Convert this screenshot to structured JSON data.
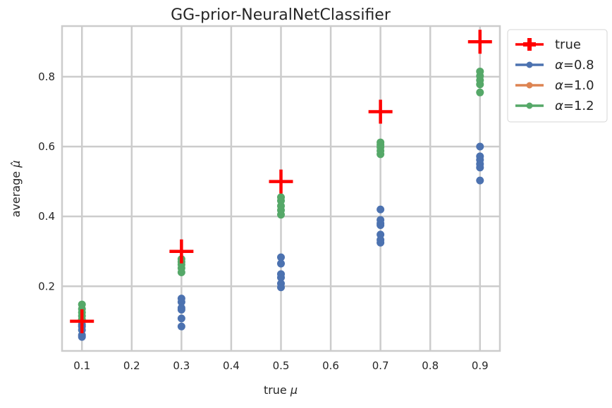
{
  "chart_data": {
    "type": "scatter",
    "title": "GG-prior-NeuralNetClassifier",
    "xlabel": "true",
    "xlabel_symbol": "μ",
    "ylabel": "average",
    "ylabel_symbol": "μ̂",
    "xlim": [
      0.06,
      0.94
    ],
    "ylim": [
      0.015,
      0.945
    ],
    "xticks": [
      0.1,
      0.2,
      0.3,
      0.4,
      0.5,
      0.6,
      0.7,
      0.8,
      0.9
    ],
    "yticks": [
      0.2,
      0.4,
      0.6,
      0.8
    ],
    "xtick_labels": [
      "0.1",
      "0.2",
      "0.3",
      "0.4",
      "0.5",
      "0.6",
      "0.7",
      "0.8",
      "0.9"
    ],
    "ytick_labels": [
      "0.2",
      "0.4",
      "0.6",
      "0.8"
    ],
    "grid": true,
    "legend_position": "outside-top-right",
    "series": [
      {
        "name": "true",
        "color": "#ff0000",
        "marker": "plus",
        "points": [
          [
            0.1,
            0.1
          ],
          [
            0.3,
            0.3
          ],
          [
            0.5,
            0.5
          ],
          [
            0.7,
            0.7
          ],
          [
            0.9,
            0.9
          ]
        ]
      },
      {
        "name": "α=0.8",
        "color": "#4c72b0",
        "marker": "circle",
        "points": [
          [
            0.1,
            0.055
          ],
          [
            0.1,
            0.06
          ],
          [
            0.1,
            0.075
          ],
          [
            0.1,
            0.085
          ],
          [
            0.1,
            0.09
          ],
          [
            0.1,
            0.1
          ],
          [
            0.3,
            0.085
          ],
          [
            0.3,
            0.108
          ],
          [
            0.3,
            0.133
          ],
          [
            0.3,
            0.138
          ],
          [
            0.3,
            0.155
          ],
          [
            0.3,
            0.165
          ],
          [
            0.5,
            0.197
          ],
          [
            0.5,
            0.208
          ],
          [
            0.5,
            0.225
          ],
          [
            0.5,
            0.235
          ],
          [
            0.5,
            0.265
          ],
          [
            0.5,
            0.283
          ],
          [
            0.7,
            0.325
          ],
          [
            0.7,
            0.333
          ],
          [
            0.7,
            0.348
          ],
          [
            0.7,
            0.375
          ],
          [
            0.7,
            0.38
          ],
          [
            0.7,
            0.39
          ],
          [
            0.7,
            0.42
          ],
          [
            0.9,
            0.503
          ],
          [
            0.9,
            0.54
          ],
          [
            0.9,
            0.55
          ],
          [
            0.9,
            0.562
          ],
          [
            0.9,
            0.572
          ],
          [
            0.9,
            0.6
          ]
        ]
      },
      {
        "name": "α=1.0",
        "color": "#dd8452",
        "marker": "circle",
        "points": []
      },
      {
        "name": "α=1.2",
        "color": "#55a868",
        "marker": "circle",
        "points": [
          [
            0.1,
            0.105
          ],
          [
            0.1,
            0.115
          ],
          [
            0.1,
            0.125
          ],
          [
            0.1,
            0.135
          ],
          [
            0.1,
            0.148
          ],
          [
            0.3,
            0.24
          ],
          [
            0.3,
            0.252
          ],
          [
            0.3,
            0.262
          ],
          [
            0.3,
            0.27
          ],
          [
            0.3,
            0.278
          ],
          [
            0.5,
            0.405
          ],
          [
            0.5,
            0.418
          ],
          [
            0.5,
            0.43
          ],
          [
            0.5,
            0.445
          ],
          [
            0.5,
            0.455
          ],
          [
            0.7,
            0.578
          ],
          [
            0.7,
            0.588
          ],
          [
            0.7,
            0.598
          ],
          [
            0.7,
            0.605
          ],
          [
            0.7,
            0.612
          ],
          [
            0.9,
            0.755
          ],
          [
            0.9,
            0.778
          ],
          [
            0.9,
            0.79
          ],
          [
            0.9,
            0.802
          ],
          [
            0.9,
            0.815
          ]
        ]
      }
    ]
  }
}
